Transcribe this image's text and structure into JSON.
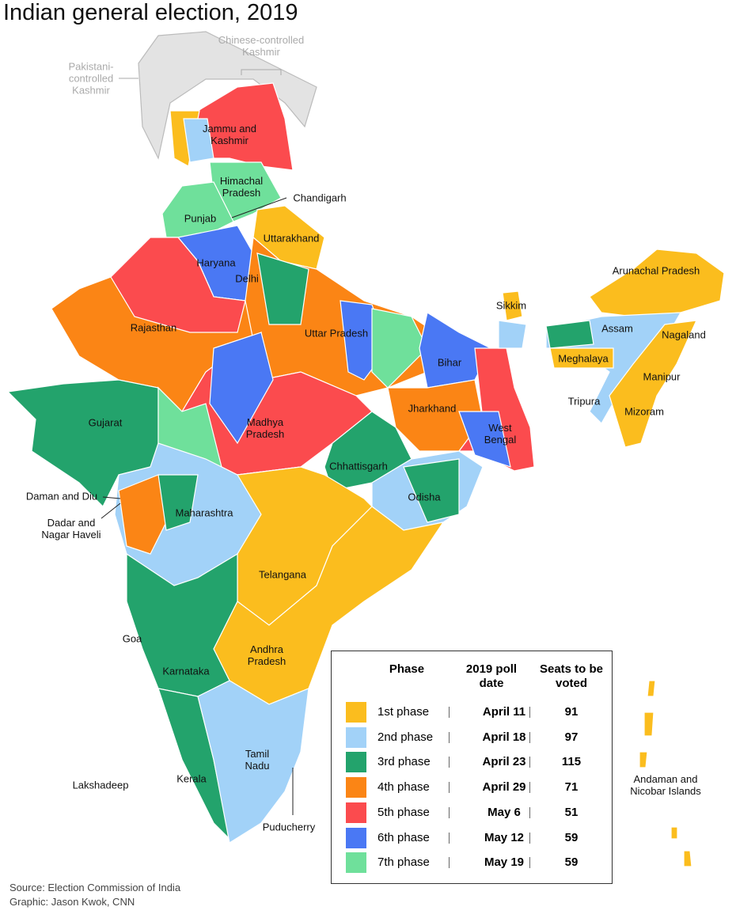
{
  "header": {
    "title": "Indian general election, 2019"
  },
  "map": {
    "labels": [
      "Chinese-controlled Kashmir",
      "Pakistani-controlled Kashmir",
      "Jammu and Kashmir",
      "Himachal Pradesh",
      "Chandigarh",
      "Punjab",
      "Uttarakhand",
      "Haryana",
      "Delhi",
      "Arunachal Pradesh",
      "Sikkim",
      "Assam",
      "Nagaland",
      "Rajasthan",
      "Uttar Pradesh",
      "Meghalaya",
      "Bihar",
      "Manipur",
      "Tripura",
      "Mizoram",
      "Gujarat",
      "Jharkhand",
      "West Bengal",
      "Madhya Pradesh",
      "Chhattisgarh",
      "Odisha",
      "Daman and Diu",
      "Dadar and Nagar Haveli",
      "Maharashtra",
      "Telangana",
      "Goa",
      "Andhra Pradesh",
      "Karnataka",
      "Tamil Nadu",
      "Kerala",
      "Lakshadeep",
      "Andaman and Nicobar Islands",
      "Puducherry"
    ]
  },
  "table": {
    "headers": [
      "Phase",
      "2019 poll date",
      "Seats to be voted"
    ],
    "rows": [
      {
        "phase": "1st phase",
        "color": "#fbbd1e",
        "date": "April 11",
        "seats": "91"
      },
      {
        "phase": "2nd phase",
        "color": "#a2d2f8",
        "date": "April 18",
        "seats": "97"
      },
      {
        "phase": "3rd phase",
        "color": "#23a36c",
        "date": "April 23",
        "seats": "115"
      },
      {
        "phase": "4th phase",
        "color": "#fb8515",
        "date": "April 29",
        "seats": "71"
      },
      {
        "phase": "5th phase",
        "color": "#fb4b4e",
        "date": "May 6",
        "seats": "51"
      },
      {
        "phase": "6th phase",
        "color": "#4a78f4",
        "date": "May 12",
        "seats": "59"
      },
      {
        "phase": "7th phase",
        "color": "#6fe09b",
        "date": "May 19",
        "seats": "59"
      }
    ]
  },
  "footer": {
    "source": "Source: Election Commission of India",
    "credit": "Graphic: Jason Kwok, CNN"
  }
}
